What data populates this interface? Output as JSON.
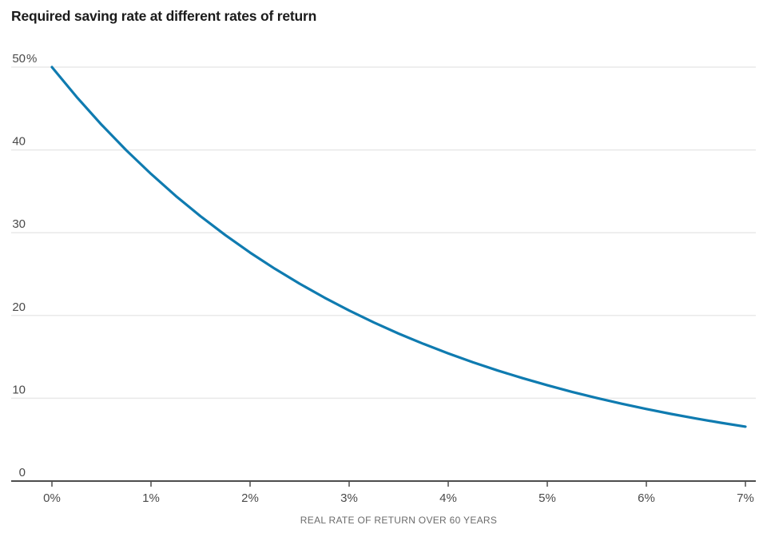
{
  "chart_data": {
    "type": "line",
    "title": "Required saving rate at different rates of return",
    "xlabel": "REAL RATE OF RETURN OVER 60 YEARS",
    "ylabel": "",
    "xlim": [
      0,
      7
    ],
    "ylim": [
      0,
      50
    ],
    "grid": "horizontal",
    "legend": "none",
    "x_ticks": [
      {
        "value": 0,
        "label": "0%"
      },
      {
        "value": 1,
        "label": "1%"
      },
      {
        "value": 2,
        "label": "2%"
      },
      {
        "value": 3,
        "label": "3%"
      },
      {
        "value": 4,
        "label": "4%"
      },
      {
        "value": 5,
        "label": "5%"
      },
      {
        "value": 6,
        "label": "6%"
      },
      {
        "value": 7,
        "label": "7%"
      }
    ],
    "y_ticks": [
      {
        "value": 50,
        "label": "50%"
      },
      {
        "value": 40,
        "label": "40"
      },
      {
        "value": 30,
        "label": "30"
      },
      {
        "value": 20,
        "label": "20"
      },
      {
        "value": 10,
        "label": "10"
      },
      {
        "value": 0,
        "label": "0"
      }
    ],
    "series": [
      {
        "name": "Required saving rate",
        "color": "#0f7bb0",
        "x": [
          0,
          0.25,
          0.5,
          0.75,
          1,
          1.25,
          1.5,
          1.75,
          2,
          2.25,
          2.5,
          2.75,
          3,
          3.25,
          3.5,
          3.75,
          4,
          4.25,
          4.5,
          4.75,
          5,
          5.25,
          5.5,
          5.75,
          6,
          6.25,
          6.5,
          6.75,
          7
        ],
        "y": [
          50,
          46.39,
          43.05,
          39.96,
          37.1,
          34.44,
          31.99,
          29.71,
          27.6,
          25.65,
          23.84,
          22.16,
          20.6,
          19.15,
          17.81,
          16.57,
          15.42,
          14.34,
          13.35,
          12.43,
          11.57,
          10.77,
          10.03,
          9.34,
          8.71,
          8.11,
          7.56,
          7.05,
          6.57
        ]
      }
    ]
  },
  "style": {
    "background": "#ffffff",
    "title_color": "#1b1b1b",
    "line_color": "#0f7bb0",
    "grid_color": "#e9e9e9",
    "axis_color": "#4d4d4d",
    "tick_text_color": "#4a4a4a",
    "axis_caption_color": "#6b6b6b"
  }
}
